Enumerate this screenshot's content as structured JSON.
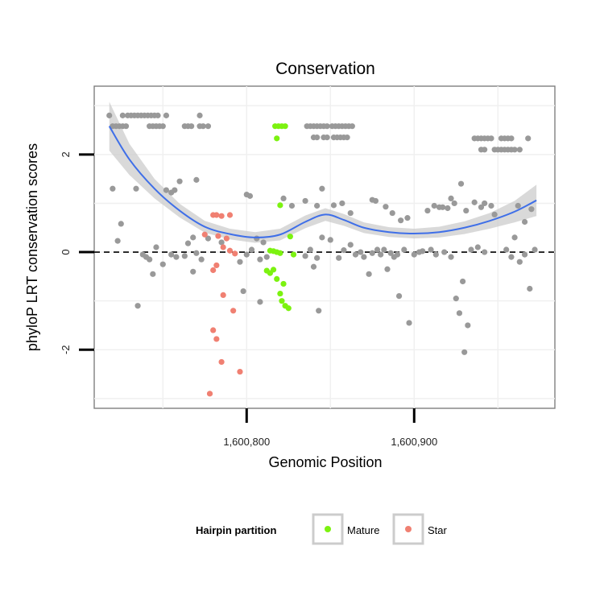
{
  "chart_data": {
    "type": "scatter",
    "title": "Conservation",
    "xlabel": "Genomic Position",
    "ylabel": "phyloP LRT conservation scores",
    "xlim": [
      1600709,
      1600984
    ],
    "ylim": [
      -3.2,
      3.4
    ],
    "x_ticks": [
      1600800,
      1600900
    ],
    "x_tick_labels": [
      "1,600,800",
      "1,600,900"
    ],
    "y_ticks": [
      -2,
      0,
      2
    ],
    "y_tick_labels": [
      "-2",
      "0",
      "2"
    ],
    "grid": true,
    "reference_line": {
      "y": 0,
      "style": "dashed"
    },
    "legend": {
      "title": "Hairpin partition",
      "placement": "bottom",
      "entries": [
        {
          "label": "Mature",
          "color": "#7cf210"
        },
        {
          "label": "Star",
          "color": "#f08072"
        }
      ]
    },
    "colors": {
      "other": "#999999",
      "Mature": "#7cf210",
      "Star": "#f08072",
      "smooth": "#3f6fe8",
      "band": "#cccccc"
    },
    "smooth": {
      "x": [
        1600718,
        1600730,
        1600745,
        1600760,
        1600775,
        1600790,
        1600805,
        1600820,
        1600835,
        1600847,
        1600858,
        1600870,
        1600885,
        1600900,
        1600915,
        1600930,
        1600945,
        1600960,
        1600973
      ],
      "y": [
        2.58,
        1.9,
        1.3,
        0.85,
        0.52,
        0.37,
        0.3,
        0.36,
        0.62,
        0.77,
        0.66,
        0.5,
        0.41,
        0.38,
        0.41,
        0.5,
        0.64,
        0.83,
        1.06
      ],
      "band_half_width": [
        0.5,
        0.32,
        0.2,
        0.14,
        0.12,
        0.11,
        0.11,
        0.12,
        0.13,
        0.13,
        0.12,
        0.11,
        0.1,
        0.1,
        0.11,
        0.13,
        0.16,
        0.22,
        0.32
      ]
    },
    "series": [
      {
        "name": "Mature",
        "points": [
          [
            1600817,
            2.58
          ],
          [
            1600819,
            2.58
          ],
          [
            1600821,
            2.58
          ],
          [
            1600823,
            2.58
          ],
          [
            1600818,
            2.33
          ],
          [
            1600820,
            0.96
          ],
          [
            1600814,
            0.03
          ],
          [
            1600816,
            0.02
          ],
          [
            1600818,
            0.0
          ],
          [
            1600820,
            -0.02
          ],
          [
            1600812,
            -0.38
          ],
          [
            1600814,
            -0.43
          ],
          [
            1600816,
            -0.36
          ],
          [
            1600818,
            -0.55
          ],
          [
            1600822,
            -0.65
          ],
          [
            1600820,
            -0.85
          ],
          [
            1600821,
            -1.0
          ],
          [
            1600823,
            -1.1
          ],
          [
            1600825,
            -1.15
          ],
          [
            1600826,
            0.32
          ],
          [
            1600828,
            -0.05
          ]
        ]
      },
      {
        "name": "Star",
        "points": [
          [
            1600780,
            0.76
          ],
          [
            1600782,
            0.76
          ],
          [
            1600785,
            0.74
          ],
          [
            1600790,
            0.76
          ],
          [
            1600775,
            0.36
          ],
          [
            1600783,
            0.33
          ],
          [
            1600788,
            0.28
          ],
          [
            1600786,
            0.1
          ],
          [
            1600790,
            0.03
          ],
          [
            1600793,
            -0.03
          ],
          [
            1600782,
            -0.27
          ],
          [
            1600780,
            -0.37
          ],
          [
            1600786,
            -0.88
          ],
          [
            1600792,
            -1.2
          ],
          [
            1600780,
            -1.6
          ],
          [
            1600782,
            -1.78
          ],
          [
            1600785,
            -2.25
          ],
          [
            1600796,
            -2.45
          ],
          [
            1600778,
            -2.9
          ]
        ]
      },
      {
        "name": "",
        "points": [
          [
            1600718,
            2.8
          ],
          [
            1600726,
            2.8
          ],
          [
            1600729,
            2.8
          ],
          [
            1600731,
            2.8
          ],
          [
            1600733,
            2.8
          ],
          [
            1600735,
            2.8
          ],
          [
            1600737,
            2.8
          ],
          [
            1600739,
            2.8
          ],
          [
            1600741,
            2.8
          ],
          [
            1600743,
            2.8
          ],
          [
            1600745,
            2.8
          ],
          [
            1600747,
            2.8
          ],
          [
            1600752,
            2.8
          ],
          [
            1600772,
            2.8
          ],
          [
            1600720,
            2.58
          ],
          [
            1600722,
            2.58
          ],
          [
            1600724,
            2.58
          ],
          [
            1600726,
            2.58
          ],
          [
            1600728,
            2.58
          ],
          [
            1600742,
            2.58
          ],
          [
            1600744,
            2.58
          ],
          [
            1600746,
            2.58
          ],
          [
            1600748,
            2.58
          ],
          [
            1600750,
            2.58
          ],
          [
            1600763,
            2.58
          ],
          [
            1600765,
            2.58
          ],
          [
            1600767,
            2.58
          ],
          [
            1600772,
            2.58
          ],
          [
            1600774,
            2.58
          ],
          [
            1600777,
            2.58
          ],
          [
            1600836,
            2.58
          ],
          [
            1600838,
            2.58
          ],
          [
            1600840,
            2.58
          ],
          [
            1600842,
            2.58
          ],
          [
            1600844,
            2.58
          ],
          [
            1600846,
            2.58
          ],
          [
            1600848,
            2.58
          ],
          [
            1600851,
            2.58
          ],
          [
            1600853,
            2.58
          ],
          [
            1600855,
            2.58
          ],
          [
            1600857,
            2.58
          ],
          [
            1600859,
            2.58
          ],
          [
            1600861,
            2.58
          ],
          [
            1600863,
            2.58
          ],
          [
            1600840,
            2.35
          ],
          [
            1600842,
            2.35
          ],
          [
            1600846,
            2.35
          ],
          [
            1600848,
            2.35
          ],
          [
            1600852,
            2.35
          ],
          [
            1600854,
            2.35
          ],
          [
            1600856,
            2.35
          ],
          [
            1600858,
            2.35
          ],
          [
            1600860,
            2.35
          ],
          [
            1600936,
            2.33
          ],
          [
            1600938,
            2.33
          ],
          [
            1600940,
            2.33
          ],
          [
            1600942,
            2.33
          ],
          [
            1600944,
            2.33
          ],
          [
            1600946,
            2.33
          ],
          [
            1600952,
            2.33
          ],
          [
            1600954,
            2.33
          ],
          [
            1600956,
            2.33
          ],
          [
            1600958,
            2.33
          ],
          [
            1600968,
            2.33
          ],
          [
            1600940,
            2.1
          ],
          [
            1600942,
            2.1
          ],
          [
            1600948,
            2.1
          ],
          [
            1600950,
            2.1
          ],
          [
            1600952,
            2.1
          ],
          [
            1600954,
            2.1
          ],
          [
            1600956,
            2.1
          ],
          [
            1600958,
            2.1
          ],
          [
            1600960,
            2.1
          ],
          [
            1600963,
            2.1
          ],
          [
            1600720,
            1.3
          ],
          [
            1600734,
            1.3
          ],
          [
            1600752,
            1.27
          ],
          [
            1600755,
            1.22
          ],
          [
            1600760,
            1.45
          ],
          [
            1600757,
            1.27
          ],
          [
            1600770,
            1.48
          ],
          [
            1600800,
            1.18
          ],
          [
            1600802,
            1.15
          ],
          [
            1600822,
            1.1
          ],
          [
            1600835,
            1.05
          ],
          [
            1600845,
            1.3
          ],
          [
            1600827,
            0.95
          ],
          [
            1600842,
            0.95
          ],
          [
            1600852,
            0.96
          ],
          [
            1600857,
            1.0
          ],
          [
            1600862,
            0.8
          ],
          [
            1600875,
            1.07
          ],
          [
            1600877,
            1.05
          ],
          [
            1600883,
            0.93
          ],
          [
            1600887,
            0.8
          ],
          [
            1600892,
            0.65
          ],
          [
            1600896,
            0.7
          ],
          [
            1600908,
            0.85
          ],
          [
            1600912,
            0.95
          ],
          [
            1600915,
            0.92
          ],
          [
            1600917,
            0.92
          ],
          [
            1600920,
            0.9
          ],
          [
            1600922,
            1.1
          ],
          [
            1600924,
            1.0
          ],
          [
            1600928,
            1.4
          ],
          [
            1600931,
            0.85
          ],
          [
            1600936,
            1.02
          ],
          [
            1600940,
            0.92
          ],
          [
            1600942,
            1.0
          ],
          [
            1600946,
            0.95
          ],
          [
            1600948,
            0.77
          ],
          [
            1600962,
            0.95
          ],
          [
            1600966,
            0.62
          ],
          [
            1600970,
            0.88
          ],
          [
            1600725,
            0.58
          ],
          [
            1600723,
            0.23
          ],
          [
            1600738,
            -0.05
          ],
          [
            1600740,
            -0.1
          ],
          [
            1600742,
            -0.15
          ],
          [
            1600744,
            -0.45
          ],
          [
            1600746,
            0.1
          ],
          [
            1600750,
            -0.25
          ],
          [
            1600755,
            -0.05
          ],
          [
            1600758,
            -0.1
          ],
          [
            1600763,
            -0.08
          ],
          [
            1600765,
            0.18
          ],
          [
            1600768,
            -0.4
          ],
          [
            1600770,
            -0.02
          ],
          [
            1600773,
            -0.15
          ],
          [
            1600796,
            -0.2
          ],
          [
            1600800,
            -0.05
          ],
          [
            1600803,
            0.05
          ],
          [
            1600806,
            0.28
          ],
          [
            1600808,
            -0.15
          ],
          [
            1600810,
            0.2
          ],
          [
            1600812,
            -0.1
          ],
          [
            1600798,
            -0.8
          ],
          [
            1600808,
            -1.02
          ],
          [
            1600835,
            -0.08
          ],
          [
            1600838,
            0.05
          ],
          [
            1600840,
            -0.3
          ],
          [
            1600842,
            -0.12
          ],
          [
            1600843,
            -1.2
          ],
          [
            1600845,
            0.3
          ],
          [
            1600850,
            0.25
          ],
          [
            1600855,
            -0.12
          ],
          [
            1600858,
            0.04
          ],
          [
            1600862,
            0.15
          ],
          [
            1600865,
            -0.05
          ],
          [
            1600868,
            0.0
          ],
          [
            1600870,
            -0.1
          ],
          [
            1600873,
            -0.45
          ],
          [
            1600875,
            -0.02
          ],
          [
            1600878,
            0.05
          ],
          [
            1600880,
            -0.05
          ],
          [
            1600882,
            0.05
          ],
          [
            1600884,
            -0.35
          ],
          [
            1600886,
            -0.02
          ],
          [
            1600888,
            -0.1
          ],
          [
            1600890,
            -0.05
          ],
          [
            1600891,
            -0.9
          ],
          [
            1600894,
            0.05
          ],
          [
            1600897,
            -1.45
          ],
          [
            1600900,
            -0.05
          ],
          [
            1600903,
            0.0
          ],
          [
            1600905,
            0.02
          ],
          [
            1600910,
            0.05
          ],
          [
            1600913,
            -0.05
          ],
          [
            1600918,
            0.0
          ],
          [
            1600922,
            -0.1
          ],
          [
            1600925,
            -0.95
          ],
          [
            1600927,
            -1.25
          ],
          [
            1600929,
            -0.6
          ],
          [
            1600930,
            -2.05
          ],
          [
            1600932,
            -1.5
          ],
          [
            1600934,
            0.05
          ],
          [
            1600938,
            0.1
          ],
          [
            1600942,
            0.0
          ],
          [
            1600955,
            0.05
          ],
          [
            1600958,
            -0.1
          ],
          [
            1600960,
            0.3
          ],
          [
            1600963,
            -0.2
          ],
          [
            1600966,
            -0.05
          ],
          [
            1600969,
            -0.75
          ],
          [
            1600972,
            0.05
          ],
          [
            1600735,
            -1.1
          ],
          [
            1600768,
            0.3
          ],
          [
            1600777,
            0.28
          ],
          [
            1600785,
            0.2
          ]
        ]
      }
    ]
  }
}
